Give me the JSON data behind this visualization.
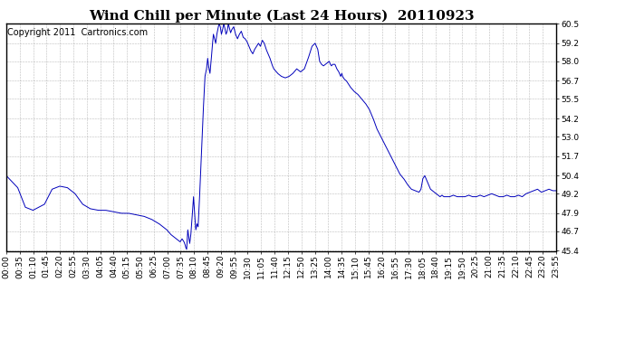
{
  "title": "Wind Chill per Minute (Last 24 Hours)  20110923",
  "copyright": "Copyright 2011  Cartronics.com",
  "line_color": "#0000bb",
  "background_color": "#ffffff",
  "grid_color": "#aaaaaa",
  "ylim": [
    45.4,
    60.5
  ],
  "yticks": [
    45.4,
    46.7,
    47.9,
    49.2,
    50.4,
    51.7,
    53.0,
    54.2,
    55.5,
    56.7,
    58.0,
    59.2,
    60.5
  ],
  "xtick_labels": [
    "00:00",
    "00:35",
    "01:10",
    "01:45",
    "02:20",
    "02:55",
    "03:30",
    "04:05",
    "04:40",
    "05:15",
    "05:50",
    "06:25",
    "07:00",
    "07:35",
    "08:10",
    "08:45",
    "09:20",
    "09:55",
    "10:30",
    "11:05",
    "11:40",
    "12:15",
    "12:50",
    "13:25",
    "14:00",
    "14:35",
    "15:10",
    "15:45",
    "16:20",
    "16:55",
    "17:30",
    "18:05",
    "18:40",
    "19:15",
    "19:50",
    "20:25",
    "21:00",
    "21:35",
    "22:10",
    "22:45",
    "23:20",
    "23:55"
  ],
  "title_fontsize": 11,
  "tick_fontsize": 6.5,
  "copyright_fontsize": 7,
  "keypoints": [
    [
      0,
      50.4
    ],
    [
      30,
      49.6
    ],
    [
      50,
      48.3
    ],
    [
      70,
      48.1
    ],
    [
      100,
      48.5
    ],
    [
      120,
      49.5
    ],
    [
      140,
      49.7
    ],
    [
      160,
      49.6
    ],
    [
      180,
      49.2
    ],
    [
      200,
      48.5
    ],
    [
      220,
      48.2
    ],
    [
      240,
      48.1
    ],
    [
      260,
      48.1
    ],
    [
      280,
      48.0
    ],
    [
      300,
      47.9
    ],
    [
      320,
      47.9
    ],
    [
      340,
      47.8
    ],
    [
      360,
      47.7
    ],
    [
      380,
      47.5
    ],
    [
      400,
      47.2
    ],
    [
      420,
      46.8
    ],
    [
      430,
      46.5
    ],
    [
      440,
      46.3
    ],
    [
      450,
      46.1
    ],
    [
      455,
      46.0
    ],
    [
      460,
      46.2
    ],
    [
      465,
      46.0
    ],
    [
      468,
      45.8
    ],
    [
      470,
      45.6
    ],
    [
      472,
      45.5
    ],
    [
      475,
      46.8
    ],
    [
      478,
      46.2
    ],
    [
      480,
      45.9
    ],
    [
      483,
      46.5
    ],
    [
      486,
      47.5
    ],
    [
      490,
      49.0
    ],
    [
      493,
      47.8
    ],
    [
      496,
      46.8
    ],
    [
      499,
      47.2
    ],
    [
      502,
      47.0
    ],
    [
      505,
      48.5
    ],
    [
      510,
      51.5
    ],
    [
      515,
      54.5
    ],
    [
      520,
      57.0
    ],
    [
      524,
      57.5
    ],
    [
      527,
      58.2
    ],
    [
      530,
      57.6
    ],
    [
      533,
      57.2
    ],
    [
      536,
      58.0
    ],
    [
      539,
      59.0
    ],
    [
      542,
      59.8
    ],
    [
      545,
      59.5
    ],
    [
      548,
      59.2
    ],
    [
      551,
      59.8
    ],
    [
      554,
      60.2
    ],
    [
      557,
      60.5
    ],
    [
      560,
      60.3
    ],
    [
      563,
      59.8
    ],
    [
      566,
      60.1
    ],
    [
      569,
      60.5
    ],
    [
      572,
      60.2
    ],
    [
      575,
      59.8
    ],
    [
      578,
      60.0
    ],
    [
      581,
      60.5
    ],
    [
      584,
      60.2
    ],
    [
      587,
      59.9
    ],
    [
      590,
      60.1
    ],
    [
      595,
      60.3
    ],
    [
      600,
      59.8
    ],
    [
      605,
      59.5
    ],
    [
      610,
      59.8
    ],
    [
      615,
      60.0
    ],
    [
      620,
      59.6
    ],
    [
      625,
      59.5
    ],
    [
      630,
      59.3
    ],
    [
      635,
      59.0
    ],
    [
      640,
      58.7
    ],
    [
      645,
      58.5
    ],
    [
      650,
      58.8
    ],
    [
      655,
      59.0
    ],
    [
      660,
      59.2
    ],
    [
      665,
      59.0
    ],
    [
      670,
      59.4
    ],
    [
      675,
      59.2
    ],
    [
      680,
      58.8
    ],
    [
      685,
      58.5
    ],
    [
      690,
      58.2
    ],
    [
      695,
      57.8
    ],
    [
      700,
      57.5
    ],
    [
      710,
      57.2
    ],
    [
      720,
      57.0
    ],
    [
      730,
      56.9
    ],
    [
      740,
      57.0
    ],
    [
      750,
      57.2
    ],
    [
      760,
      57.5
    ],
    [
      770,
      57.3
    ],
    [
      780,
      57.5
    ],
    [
      790,
      58.2
    ],
    [
      800,
      59.0
    ],
    [
      808,
      59.2
    ],
    [
      815,
      58.8
    ],
    [
      820,
      58.0
    ],
    [
      825,
      57.8
    ],
    [
      830,
      57.7
    ],
    [
      835,
      57.8
    ],
    [
      840,
      57.9
    ],
    [
      845,
      58.0
    ],
    [
      848,
      57.8
    ],
    [
      851,
      57.7
    ],
    [
      854,
      57.8
    ],
    [
      860,
      57.8
    ],
    [
      865,
      57.5
    ],
    [
      870,
      57.3
    ],
    [
      875,
      57.0
    ],
    [
      878,
      57.2
    ],
    [
      880,
      57.0
    ],
    [
      885,
      56.8
    ],
    [
      890,
      56.7
    ],
    [
      895,
      56.5
    ],
    [
      900,
      56.3
    ],
    [
      910,
      56.0
    ],
    [
      920,
      55.8
    ],
    [
      930,
      55.5
    ],
    [
      940,
      55.2
    ],
    [
      950,
      54.8
    ],
    [
      960,
      54.2
    ],
    [
      970,
      53.5
    ],
    [
      980,
      53.0
    ],
    [
      990,
      52.5
    ],
    [
      1000,
      52.0
    ],
    [
      1010,
      51.5
    ],
    [
      1020,
      51.0
    ],
    [
      1030,
      50.5
    ],
    [
      1040,
      50.2
    ],
    [
      1050,
      49.8
    ],
    [
      1060,
      49.5
    ],
    [
      1070,
      49.4
    ],
    [
      1080,
      49.3
    ],
    [
      1085,
      49.5
    ],
    [
      1090,
      50.2
    ],
    [
      1095,
      50.4
    ],
    [
      1100,
      50.1
    ],
    [
      1105,
      49.8
    ],
    [
      1110,
      49.5
    ],
    [
      1115,
      49.4
    ],
    [
      1120,
      49.3
    ],
    [
      1125,
      49.2
    ],
    [
      1130,
      49.1
    ],
    [
      1135,
      49.0
    ],
    [
      1140,
      49.1
    ],
    [
      1145,
      49.0
    ],
    [
      1150,
      49.0
    ],
    [
      1160,
      49.0
    ],
    [
      1170,
      49.1
    ],
    [
      1180,
      49.0
    ],
    [
      1190,
      49.0
    ],
    [
      1200,
      49.0
    ],
    [
      1210,
      49.1
    ],
    [
      1220,
      49.0
    ],
    [
      1230,
      49.0
    ],
    [
      1240,
      49.1
    ],
    [
      1250,
      49.0
    ],
    [
      1260,
      49.1
    ],
    [
      1270,
      49.2
    ],
    [
      1280,
      49.1
    ],
    [
      1290,
      49.0
    ],
    [
      1300,
      49.0
    ],
    [
      1310,
      49.1
    ],
    [
      1320,
      49.0
    ],
    [
      1330,
      49.0
    ],
    [
      1340,
      49.1
    ],
    [
      1350,
      49.0
    ],
    [
      1360,
      49.2
    ],
    [
      1370,
      49.3
    ],
    [
      1380,
      49.4
    ],
    [
      1390,
      49.5
    ],
    [
      1400,
      49.3
    ],
    [
      1410,
      49.4
    ],
    [
      1420,
      49.5
    ],
    [
      1430,
      49.4
    ],
    [
      1439,
      49.4
    ]
  ]
}
